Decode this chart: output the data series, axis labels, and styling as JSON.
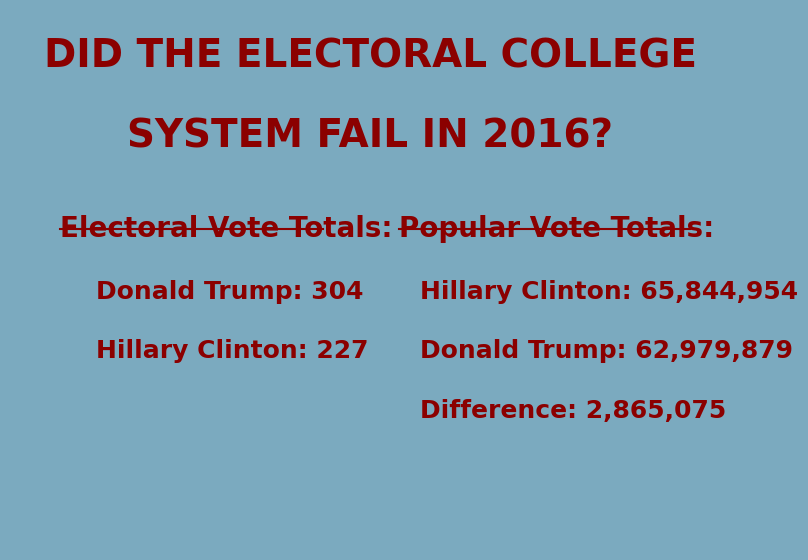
{
  "title_line1": "DID THE ELECTORAL COLLEGE",
  "title_line2": "SYSTEM FAIL IN 2016?",
  "title_color": "#8B0000",
  "title_fontsize": 28,
  "background_color": "#7BAABF",
  "left_header": "Electoral Vote Totals:",
  "left_items": [
    "Donald Trump: 304",
    "Hillary Clinton: 227"
  ],
  "right_header": "Popular Vote Totals:",
  "right_items": [
    "Hillary Clinton: 65,844,954",
    "Donald Trump: 62,979,879",
    "Difference: 2,865,075"
  ],
  "header_fontsize": 20,
  "item_fontsize": 18,
  "text_color": "#8B0000"
}
